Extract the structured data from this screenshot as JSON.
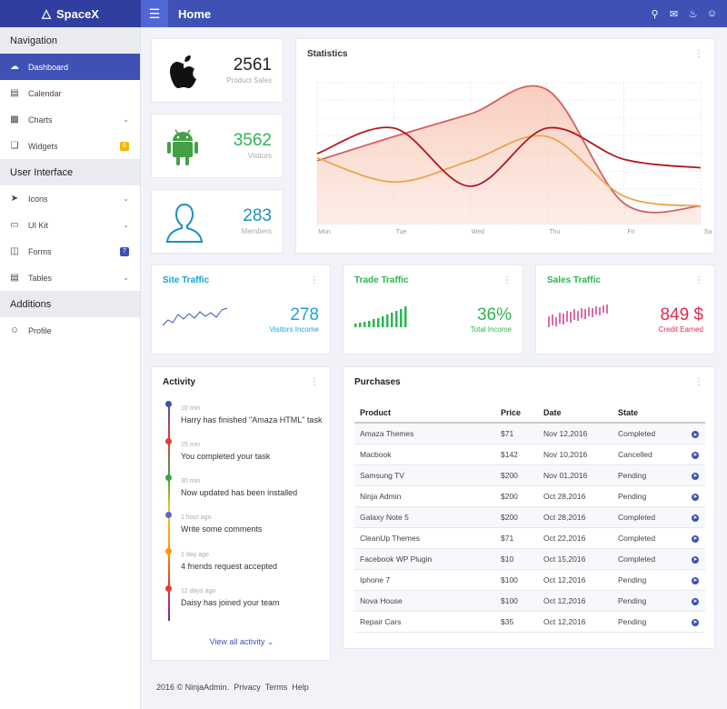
{
  "app": {
    "brand": "SpaceX",
    "page_title": "Home"
  },
  "sidebar": {
    "sections": [
      {
        "title": "Navigation"
      },
      {
        "title": "User Interface"
      },
      {
        "title": "Additions"
      }
    ],
    "items": [
      {
        "label": "Dashboard"
      },
      {
        "label": "Calendar"
      },
      {
        "label": "Charts"
      },
      {
        "label": "Widgets",
        "badge": "6"
      },
      {
        "label": "Icons"
      },
      {
        "label": "UI Kit"
      },
      {
        "label": "Forms",
        "badge": "7"
      },
      {
        "label": "Tables"
      },
      {
        "label": "Profile"
      }
    ]
  },
  "stats": {
    "sales": {
      "value": "2561",
      "label": "Product Sales"
    },
    "visitors": {
      "value": "3562",
      "label": "Visitors"
    },
    "members": {
      "value": "283",
      "label": "Members"
    }
  },
  "statistics": {
    "title": "Statistics",
    "x_labels": [
      "Mon",
      "Tue",
      "Wed",
      "Thu",
      "Fri",
      "Sa"
    ]
  },
  "chart_data": {
    "type": "line",
    "title": "Statistics",
    "x": [
      "Mon",
      "Tue",
      "Wed",
      "Thu",
      "Fri",
      "Sa"
    ],
    "series": [
      {
        "values": [
          0.45,
          0.62,
          0.78,
          0.95,
          0.15,
          0.13
        ],
        "color": "#d66060"
      },
      {
        "values": [
          0.47,
          0.3,
          0.45,
          0.62,
          0.2,
          0.13
        ],
        "color": "#e9a64a"
      },
      {
        "values": [
          0.5,
          0.68,
          0.27,
          0.68,
          0.46,
          0.4
        ],
        "color": "#b5171f"
      }
    ],
    "grid": true,
    "legend": "none"
  },
  "traffic": {
    "site": {
      "title": "Site Traffic",
      "value": "278",
      "label": "Visitors Income",
      "color": "#1aa3d4"
    },
    "trade": {
      "title": "Trade Traffic",
      "value": "36%",
      "label": "Total Income",
      "color": "#2db553"
    },
    "sales": {
      "title": "Sales Traffic",
      "value": "849 $",
      "label": "Credit Earned",
      "color": "#e02b4f"
    }
  },
  "activity": {
    "title": "Activity",
    "items": [
      {
        "time": "10 min",
        "text": "Harry has finished \"Amaza HTML\" task",
        "color": "#3f51b5"
      },
      {
        "time": "15 min",
        "text": "You completed your task",
        "color": "#e53935"
      },
      {
        "time": "30 min",
        "text": "Now updated has been installed",
        "color": "#43a047"
      },
      {
        "time": "1 hour ago",
        "text": "Write some comments",
        "color": "#5c6bc0"
      },
      {
        "time": "1 day ago",
        "text": "4 friends request accepted",
        "color": "#ff9800"
      },
      {
        "time": "12 days ago",
        "text": "Daisy has joined your team",
        "color": "#e53935"
      }
    ],
    "view_all": "View all activity"
  },
  "purchases": {
    "title": "Purchases",
    "headers": [
      "Product",
      "Price",
      "Date",
      "State"
    ],
    "rows": [
      {
        "product": "Amaza Themes",
        "price": "$71",
        "date": "Nov 12,2016",
        "state": "Completed"
      },
      {
        "product": "Macbook",
        "price": "$142",
        "date": "Nov 10,2016",
        "state": "Cancelled"
      },
      {
        "product": "Samsung TV",
        "price": "$200",
        "date": "Nov 01,2016",
        "state": "Pending"
      },
      {
        "product": "Ninja Admin",
        "price": "$200",
        "date": "Oct 28,2016",
        "state": "Pending"
      },
      {
        "product": "Galaxy Note 5",
        "price": "$200",
        "date": "Oct 28,2016",
        "state": "Completed"
      },
      {
        "product": "CleanUp Themes",
        "price": "$71",
        "date": "Oct 22,2016",
        "state": "Completed"
      },
      {
        "product": "Facebook WP Plugin",
        "price": "$10",
        "date": "Oct 15,2016",
        "state": "Completed"
      },
      {
        "product": "Iphone 7",
        "price": "$100",
        "date": "Oct 12,2016",
        "state": "Pending"
      },
      {
        "product": "Nova House",
        "price": "$100",
        "date": "Oct 12,2016",
        "state": "Pending"
      },
      {
        "product": "Repair Cars",
        "price": "$35",
        "date": "Oct 12,2016",
        "state": "Pending"
      }
    ]
  },
  "footer": {
    "copyright": "2016 © NinjaAdmin.",
    "links": [
      "Privacy",
      "Terms",
      "Help"
    ]
  }
}
